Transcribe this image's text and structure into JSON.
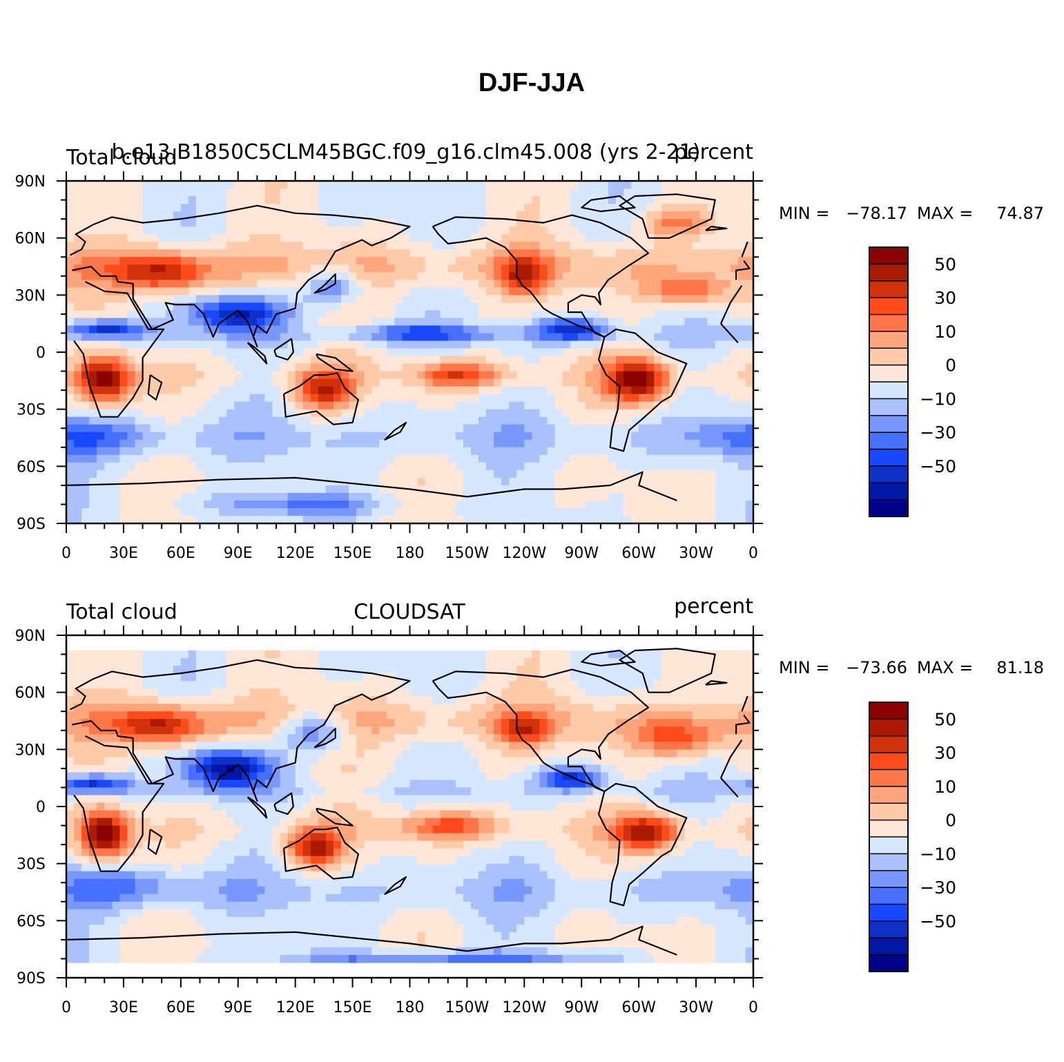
{
  "figure": {
    "title": "DJF-JJA"
  },
  "colorbar": {
    "colors": [
      "#00008b",
      "#0018a8",
      "#0c30c8",
      "#1848ff",
      "#4670ff",
      "#7898ff",
      "#aac1ff",
      "#d6e8ff",
      "#ffe6d6",
      "#ffcaa8",
      "#ffa57c",
      "#ff7648",
      "#ff4a1a",
      "#d0320c",
      "#aa1a00",
      "#8b0000"
    ],
    "labels": [
      "−50",
      "−30",
      "−10",
      "0",
      "10",
      "30",
      "50"
    ]
  },
  "chart_data": [
    {
      "type": "heatmap",
      "title": "b.e13.B1850C5CLM45BGC.f09_g16.clm45.008 (yrs 2-21)",
      "left_label": "Total cloud",
      "right_label": "percent",
      "stats": {
        "min_label": "MIN =",
        "min": "−78.17",
        "max_label": "MAX =",
        "max": "74.87"
      },
      "x_tick_labels": [
        "0",
        "30E",
        "60E",
        "90E",
        "120E",
        "150E",
        "180",
        "150W",
        "120W",
        "90W",
        "60W",
        "30W",
        "0"
      ],
      "y_tick_labels": [
        "90N",
        "60N",
        "30N",
        "0",
        "30S",
        "60S",
        "90S"
      ],
      "xlim": [
        0,
        360
      ],
      "ylim": [
        -90,
        90
      ],
      "lat_extent": [
        -90,
        90
      ],
      "hotspots": [
        {
          "lon": 20,
          "lat": -15,
          "v": 70,
          "w": 14,
          "h": 12
        },
        {
          "lon": 300,
          "lat": -15,
          "v": 70,
          "w": 16,
          "h": 12
        },
        {
          "lon": 135,
          "lat": -20,
          "v": 55,
          "w": 15,
          "h": 10
        },
        {
          "lon": 205,
          "lat": -12,
          "v": 45,
          "w": 22,
          "h": 7
        },
        {
          "lon": 50,
          "lat": 42,
          "v": 50,
          "w": 24,
          "h": 10
        },
        {
          "lon": 240,
          "lat": 40,
          "v": 45,
          "w": 12,
          "h": 10
        },
        {
          "lon": 325,
          "lat": 32,
          "v": 40,
          "w": 22,
          "h": 8
        },
        {
          "lon": 320,
          "lat": 68,
          "v": 35,
          "w": 18,
          "h": 8
        },
        {
          "lon": 90,
          "lat": 20,
          "v": -60,
          "w": 25,
          "h": 9
        },
        {
          "lon": 20,
          "lat": 12,
          "v": -55,
          "w": 22,
          "h": 5
        },
        {
          "lon": 265,
          "lat": 12,
          "v": -55,
          "w": 20,
          "h": 6
        },
        {
          "lon": 185,
          "lat": 10,
          "v": -35,
          "w": 40,
          "h": 5
        },
        {
          "lon": 140,
          "lat": 35,
          "v": -40,
          "w": 15,
          "h": 10
        },
        {
          "lon": 10,
          "lat": -45,
          "v": -25,
          "w": 40,
          "h": 10
        },
        {
          "lon": 120,
          "lat": -80,
          "v": -30,
          "w": 50,
          "h": 6
        }
      ]
    },
    {
      "type": "heatmap",
      "title": "CLOUDSAT",
      "left_label": "Total cloud",
      "right_label": "percent",
      "stats": {
        "min_label": "MIN =",
        "min": "−73.66",
        "max_label": "MAX =",
        "max": "81.18"
      },
      "x_tick_labels": [
        "0",
        "30E",
        "60E",
        "90E",
        "120E",
        "150E",
        "180",
        "150W",
        "120W",
        "90W",
        "60W",
        "30W",
        "0"
      ],
      "y_tick_labels": [
        "90N",
        "60N",
        "30N",
        "0",
        "30S",
        "60S",
        "90S"
      ],
      "xlim": [
        0,
        360
      ],
      "ylim": [
        -90,
        90
      ],
      "lat_extent": [
        -82,
        82
      ],
      "hotspots": [
        {
          "lon": 20,
          "lat": -15,
          "v": 75,
          "w": 12,
          "h": 12
        },
        {
          "lon": 305,
          "lat": -14,
          "v": 65,
          "w": 16,
          "h": 10
        },
        {
          "lon": 130,
          "lat": -22,
          "v": 60,
          "w": 15,
          "h": 10
        },
        {
          "lon": 200,
          "lat": -10,
          "v": 40,
          "w": 25,
          "h": 8
        },
        {
          "lon": 50,
          "lat": 42,
          "v": 50,
          "w": 22,
          "h": 10
        },
        {
          "lon": 240,
          "lat": 40,
          "v": 40,
          "w": 12,
          "h": 8
        },
        {
          "lon": 320,
          "lat": 35,
          "v": 40,
          "w": 22,
          "h": 10
        },
        {
          "lon": 85,
          "lat": 20,
          "v": -70,
          "w": 22,
          "h": 10
        },
        {
          "lon": 15,
          "lat": 12,
          "v": -55,
          "w": 20,
          "h": 5
        },
        {
          "lon": 265,
          "lat": 15,
          "v": -55,
          "w": 18,
          "h": 6
        },
        {
          "lon": 130,
          "lat": 40,
          "v": -40,
          "w": 18,
          "h": 10
        },
        {
          "lon": 30,
          "lat": -42,
          "v": -25,
          "w": 40,
          "h": 10
        },
        {
          "lon": 200,
          "lat": -80,
          "v": -35,
          "w": 80,
          "h": 4
        }
      ]
    }
  ]
}
